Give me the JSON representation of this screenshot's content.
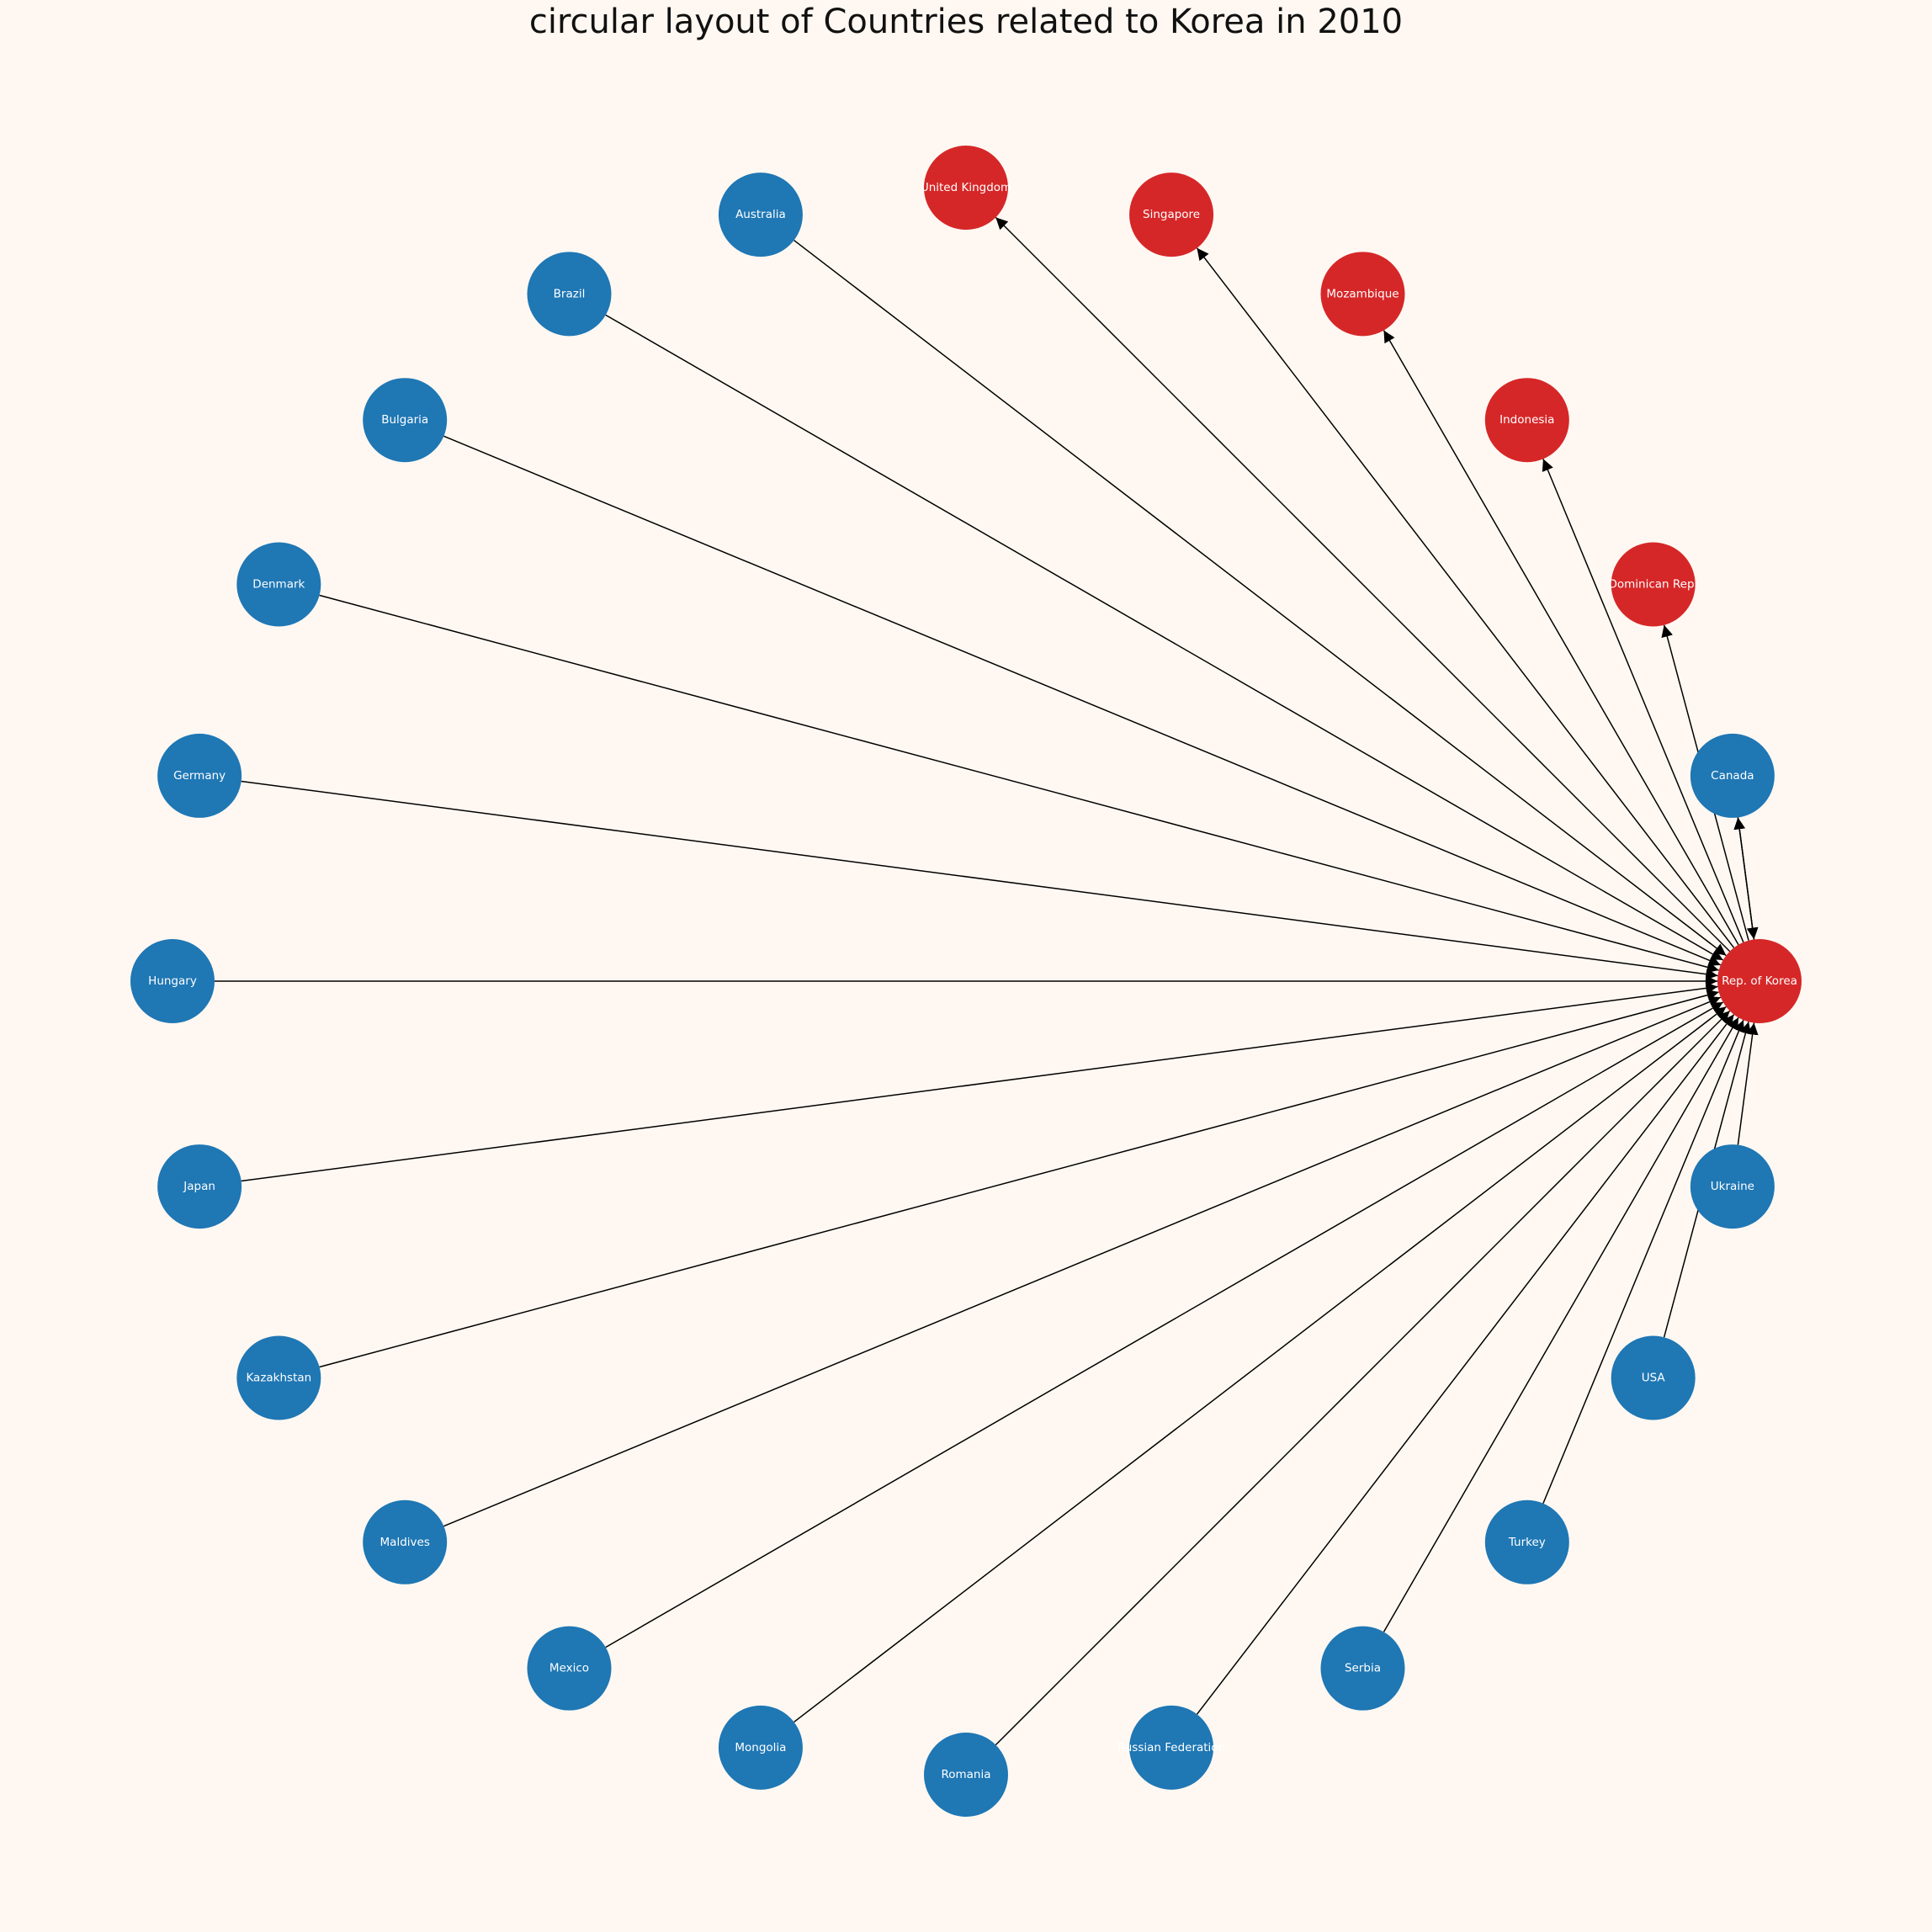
{
  "title": "circular layout of Countries related to Korea in 2010",
  "colors": {
    "blue": "#1f77b4",
    "red": "#d62728",
    "edge": "#000000",
    "background": "#fff8f2",
    "label": "#ffffff"
  },
  "center": "Rep. of Korea",
  "nodes": [
    {
      "label": "Rep. of Korea",
      "group": "red"
    },
    {
      "label": "Canada",
      "group": "blue"
    },
    {
      "label": "Dominican Rep.",
      "group": "red"
    },
    {
      "label": "Indonesia",
      "group": "red"
    },
    {
      "label": "Mozambique",
      "group": "red"
    },
    {
      "label": "Singapore",
      "group": "red"
    },
    {
      "label": "United Kingdom",
      "group": "red"
    },
    {
      "label": "Australia",
      "group": "blue"
    },
    {
      "label": "Brazil",
      "group": "blue"
    },
    {
      "label": "Bulgaria",
      "group": "blue"
    },
    {
      "label": "Denmark",
      "group": "blue"
    },
    {
      "label": "Germany",
      "group": "blue"
    },
    {
      "label": "Hungary",
      "group": "blue"
    },
    {
      "label": "Japan",
      "group": "blue"
    },
    {
      "label": "Kazakhstan",
      "group": "blue"
    },
    {
      "label": "Maldives",
      "group": "blue"
    },
    {
      "label": "Mexico",
      "group": "blue"
    },
    {
      "label": "Mongolia",
      "group": "blue"
    },
    {
      "label": "Romania",
      "group": "blue"
    },
    {
      "label": "Russian Federation",
      "group": "blue"
    },
    {
      "label": "Serbia",
      "group": "blue"
    },
    {
      "label": "Turkey",
      "group": "blue"
    },
    {
      "label": "USA",
      "group": "blue"
    },
    {
      "label": "Ukraine",
      "group": "blue"
    }
  ],
  "edges": [
    {
      "from": "Rep. of Korea",
      "to": "Canada"
    },
    {
      "from": "Rep. of Korea",
      "to": "Dominican Rep."
    },
    {
      "from": "Rep. of Korea",
      "to": "Indonesia"
    },
    {
      "from": "Rep. of Korea",
      "to": "Mozambique"
    },
    {
      "from": "Rep. of Korea",
      "to": "Singapore"
    },
    {
      "from": "Rep. of Korea",
      "to": "United Kingdom"
    },
    {
      "from": "Canada",
      "to": "Rep. of Korea"
    },
    {
      "from": "Australia",
      "to": "Rep. of Korea"
    },
    {
      "from": "Brazil",
      "to": "Rep. of Korea"
    },
    {
      "from": "Bulgaria",
      "to": "Rep. of Korea"
    },
    {
      "from": "Denmark",
      "to": "Rep. of Korea"
    },
    {
      "from": "Germany",
      "to": "Rep. of Korea"
    },
    {
      "from": "Hungary",
      "to": "Rep. of Korea"
    },
    {
      "from": "Japan",
      "to": "Rep. of Korea"
    },
    {
      "from": "Kazakhstan",
      "to": "Rep. of Korea"
    },
    {
      "from": "Maldives",
      "to": "Rep. of Korea"
    },
    {
      "from": "Mexico",
      "to": "Rep. of Korea"
    },
    {
      "from": "Mongolia",
      "to": "Rep. of Korea"
    },
    {
      "from": "Romania",
      "to": "Rep. of Korea"
    },
    {
      "from": "Russian Federation",
      "to": "Rep. of Korea"
    },
    {
      "from": "Serbia",
      "to": "Rep. of Korea"
    },
    {
      "from": "Turkey",
      "to": "Rep. of Korea"
    },
    {
      "from": "USA",
      "to": "Rep. of Korea"
    },
    {
      "from": "Ukraine",
      "to": "Rep. of Korea"
    }
  ]
}
